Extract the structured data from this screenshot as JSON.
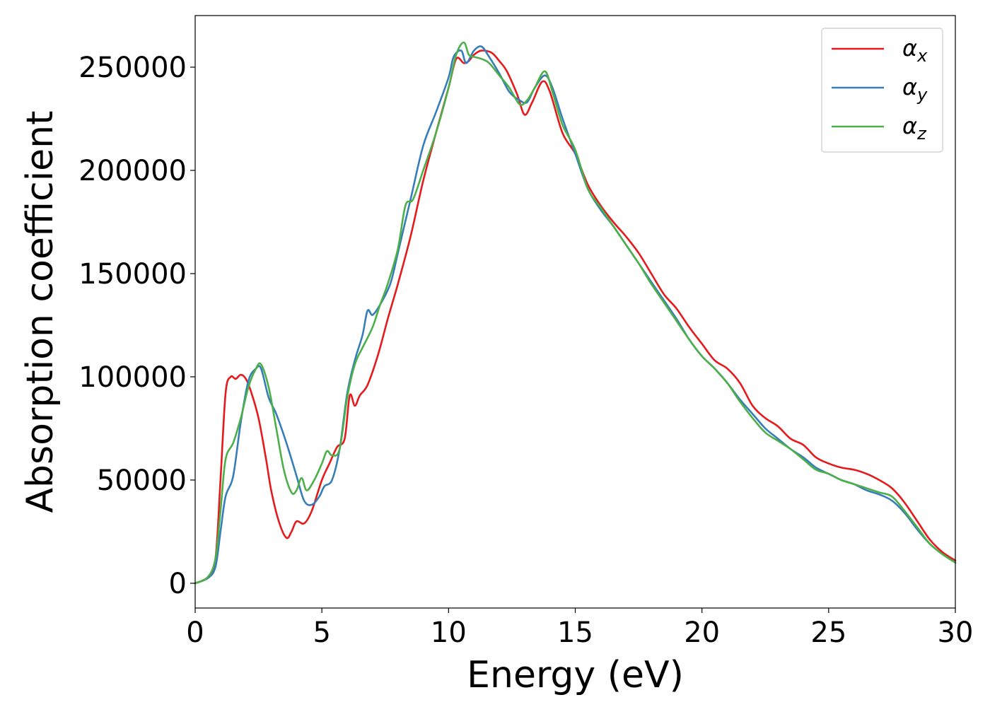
{
  "chart_data": {
    "type": "line",
    "title": "",
    "xlabel": "Energy (eV)",
    "ylabel": "Absorption coefficient",
    "xlim": [
      0,
      30
    ],
    "ylim": [
      -12000,
      275000
    ],
    "xticks": [
      0,
      5,
      10,
      15,
      20,
      25,
      30
    ],
    "xtick_labels": [
      "0",
      "5",
      "10",
      "15",
      "20",
      "25",
      "30"
    ],
    "yticks": [
      0,
      50000,
      100000,
      150000,
      200000,
      250000
    ],
    "ytick_labels": [
      "0",
      "50000",
      "100000",
      "150000",
      "200000",
      "250000"
    ],
    "grid": false,
    "legend_position": "top-right",
    "series": [
      {
        "name": "α",
        "subscript": "x",
        "color": "#e41a1c",
        "x": [
          0,
          0.5,
          0.8,
          1.0,
          1.2,
          1.4,
          1.6,
          1.8,
          2.0,
          2.2,
          2.5,
          2.8,
          3.0,
          3.3,
          3.6,
          3.8,
          4.0,
          4.3,
          4.6,
          5.0,
          5.3,
          5.6,
          5.9,
          6.1,
          6.3,
          6.5,
          6.8,
          7.2,
          7.6,
          8.0,
          8.5,
          9.0,
          9.5,
          10.0,
          10.3,
          10.6,
          10.8,
          11.0,
          11.3,
          11.7,
          12.0,
          12.3,
          12.7,
          13.0,
          13.3,
          13.7,
          14.0,
          14.5,
          15.0,
          15.5,
          16.0,
          16.5,
          17.0,
          17.5,
          18.0,
          18.5,
          19.0,
          19.5,
          20.0,
          20.5,
          21.0,
          21.5,
          22.0,
          22.5,
          23.0,
          23.5,
          24.0,
          24.5,
          25.0,
          25.5,
          26.0,
          26.5,
          27.0,
          27.5,
          28.0,
          28.5,
          29.0,
          29.5,
          30.0
        ],
        "values": [
          0,
          3000,
          12000,
          50000,
          92000,
          100000,
          99000,
          101000,
          99000,
          93000,
          80000,
          60000,
          45000,
          30000,
          22000,
          25000,
          30000,
          29000,
          35000,
          50000,
          58000,
          66000,
          70000,
          91000,
          86000,
          91000,
          96000,
          110000,
          128000,
          145000,
          168000,
          195000,
          218000,
          240000,
          254000,
          252000,
          253000,
          256000,
          258000,
          257000,
          253000,
          248000,
          237000,
          227000,
          233000,
          243000,
          238000,
          218000,
          208000,
          193000,
          183000,
          175000,
          168000,
          160000,
          150000,
          140000,
          133000,
          124000,
          116000,
          108000,
          104000,
          97000,
          86000,
          80000,
          76000,
          70000,
          67000,
          61000,
          58000,
          56000,
          55000,
          53000,
          50000,
          46000,
          39000,
          30000,
          21000,
          15000,
          11000
        ]
      },
      {
        "name": "α",
        "subscript": "y",
        "color": "#377eb8",
        "x": [
          0,
          0.5,
          0.8,
          1.0,
          1.2,
          1.5,
          1.8,
          2.1,
          2.4,
          2.6,
          2.9,
          3.2,
          3.6,
          4.0,
          4.3,
          4.6,
          4.9,
          5.1,
          5.4,
          5.7,
          6.0,
          6.3,
          6.6,
          6.8,
          7.0,
          7.3,
          7.7,
          8.0,
          8.5,
          9.0,
          9.5,
          10.0,
          10.2,
          10.5,
          10.7,
          11.0,
          11.3,
          11.6,
          12.0,
          12.4,
          12.8,
          13.1,
          13.4,
          13.8,
          14.1,
          14.5,
          15.0,
          15.5,
          16.0,
          16.5,
          17.0,
          17.5,
          18.0,
          18.5,
          19.0,
          19.5,
          20.0,
          20.5,
          21.0,
          21.5,
          22.0,
          22.5,
          23.0,
          23.5,
          24.0,
          24.5,
          25.0,
          25.5,
          26.0,
          26.5,
          27.0,
          27.5,
          28.0,
          28.5,
          29.0,
          29.5,
          30.0
        ],
        "values": [
          0,
          2500,
          8000,
          25000,
          42000,
          52000,
          78000,
          98000,
          104000,
          104000,
          90000,
          82000,
          68000,
          52000,
          40000,
          38000,
          42000,
          47000,
          50000,
          65000,
          92000,
          108000,
          120000,
          132000,
          130000,
          135000,
          145000,
          160000,
          186000,
          212000,
          228000,
          245000,
          255000,
          258000,
          252000,
          258000,
          260000,
          255000,
          247000,
          238000,
          234000,
          233000,
          240000,
          246000,
          240000,
          225000,
          208000,
          191000,
          181000,
          173000,
          164000,
          155000,
          146000,
          137000,
          128000,
          118000,
          110000,
          104000,
          97000,
          89000,
          82000,
          75000,
          70000,
          65000,
          61000,
          56000,
          53000,
          50000,
          48000,
          45000,
          43000,
          40000,
          34000,
          26000,
          19000,
          14000,
          10000
        ]
      },
      {
        "name": "α",
        "subscript": "z",
        "color": "#4daf4a",
        "x": [
          0,
          0.5,
          0.8,
          1.0,
          1.2,
          1.5,
          1.8,
          2.1,
          2.4,
          2.6,
          2.9,
          3.2,
          3.5,
          3.8,
          4.0,
          4.2,
          4.4,
          4.7,
          5.0,
          5.2,
          5.4,
          5.7,
          6.0,
          6.3,
          6.6,
          7.0,
          7.3,
          7.6,
          8.0,
          8.3,
          8.6,
          9.0,
          9.5,
          10.0,
          10.3,
          10.6,
          10.8,
          11.0,
          11.3,
          11.6,
          12.0,
          12.4,
          12.8,
          13.1,
          13.4,
          13.8,
          14.1,
          14.5,
          15.0,
          15.5,
          16.0,
          16.5,
          17.0,
          17.5,
          18.0,
          18.5,
          19.0,
          19.5,
          20.0,
          20.5,
          21.0,
          21.5,
          22.0,
          22.5,
          23.0,
          23.5,
          24.0,
          24.5,
          25.0,
          25.5,
          26.0,
          26.5,
          27.0,
          27.5,
          28.0,
          28.5,
          29.0,
          29.5,
          30.0
        ],
        "values": [
          0,
          3000,
          12000,
          35000,
          60000,
          68000,
          80000,
          95000,
          104000,
          106000,
          95000,
          75000,
          55000,
          44000,
          45000,
          51000,
          45000,
          50000,
          58000,
          64000,
          62000,
          65000,
          90000,
          106000,
          114000,
          124000,
          135000,
          145000,
          162000,
          183000,
          186000,
          200000,
          218000,
          240000,
          256000,
          262000,
          256000,
          255000,
          254000,
          252000,
          246000,
          240000,
          232000,
          234000,
          240000,
          248000,
          238000,
          222000,
          210000,
          191000,
          182000,
          173000,
          164000,
          155000,
          145000,
          136000,
          127000,
          118000,
          110000,
          104000,
          97000,
          88000,
          80000,
          73000,
          69000,
          65000,
          60000,
          55000,
          53000,
          50000,
          48000,
          46000,
          44000,
          42000,
          35000,
          27000,
          19000,
          14000,
          10000
        ]
      }
    ]
  }
}
